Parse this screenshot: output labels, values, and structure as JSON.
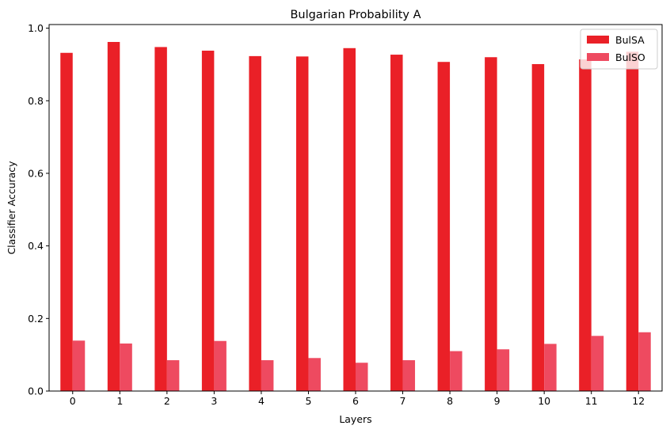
{
  "chart_data": {
    "type": "bar",
    "title": "Bulgarian Probability A",
    "xlabel": "Layers",
    "ylabel": "Classifier Accuracy",
    "categories": [
      "0",
      "1",
      "2",
      "3",
      "4",
      "5",
      "6",
      "7",
      "8",
      "9",
      "10",
      "11",
      "12"
    ],
    "ylim": [
      0,
      1.01
    ],
    "yticks": [
      "0.0",
      "0.2",
      "0.4",
      "0.6",
      "0.8",
      "1.0"
    ],
    "ytick_values": [
      0,
      0.2,
      0.4,
      0.6,
      0.8,
      1.0
    ],
    "grid": false,
    "legend_position": "top-right",
    "series": [
      {
        "name": "BulSA",
        "color": "#ea2027",
        "values": [
          0.932,
          0.962,
          0.948,
          0.938,
          0.923,
          0.922,
          0.945,
          0.927,
          0.907,
          0.92,
          0.901,
          0.914,
          0.935
        ]
      },
      {
        "name": "BulSO",
        "color": "#ee4a60",
        "values": [
          0.139,
          0.131,
          0.085,
          0.138,
          0.085,
          0.091,
          0.078,
          0.085,
          0.11,
          0.115,
          0.13,
          0.152,
          0.162
        ]
      }
    ]
  }
}
